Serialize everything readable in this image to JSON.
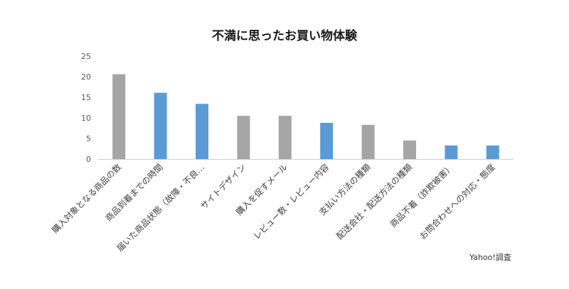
{
  "chart_data": {
    "type": "bar",
    "title": "不満に思ったお買い物体験",
    "categories": [
      "購入対象となる商品の数",
      "商品到着までの時間",
      "届いた商品状態（故障・不良…",
      "サイトデザイン",
      "購入を促すメール",
      "レビュー数・レビュー内容",
      "支払い方法の種類",
      "配送会社・配送方法の種類",
      "商品不着（詐欺被害）",
      "お問合わせへの対応・態度"
    ],
    "values": [
      20.6,
      16.1,
      13.4,
      10.5,
      10.5,
      8.8,
      8.3,
      4.5,
      3.3,
      3.3
    ],
    "bar_colors": [
      "#a5a5a5",
      "#5b9bd5",
      "#5b9bd5",
      "#a5a5a5",
      "#a5a5a5",
      "#5b9bd5",
      "#a5a5a5",
      "#a5a5a5",
      "#5b9bd5",
      "#5b9bd5"
    ],
    "ylim": [
      0,
      25
    ],
    "yticks": [
      "0",
      "5",
      "10",
      "15",
      "20",
      "25"
    ],
    "xlabel": "",
    "ylabel": "",
    "grid": false,
    "legend": "none"
  },
  "source": "Yahoo!調査"
}
